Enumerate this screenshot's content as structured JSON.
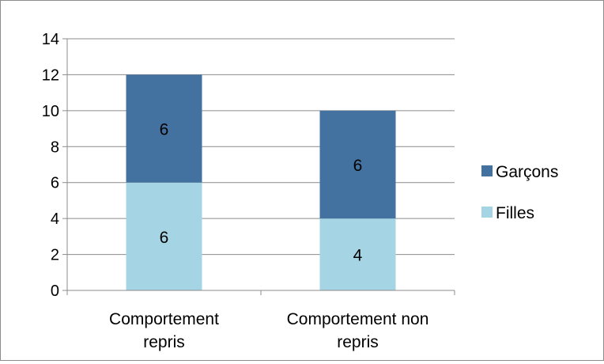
{
  "chart_data": {
    "type": "bar",
    "stacked": true,
    "title": "",
    "xlabel": "",
    "ylabel": "",
    "categories": [
      [
        "Comportement",
        "repris"
      ],
      [
        "Comportement non",
        "repris"
      ]
    ],
    "series": [
      {
        "name": "Filles",
        "values": [
          6,
          4
        ],
        "color": "#a5d5e4"
      },
      {
        "name": "Garçons",
        "values": [
          6,
          6
        ],
        "color": "#4472a0"
      }
    ],
    "data_labels": [
      [
        "6",
        "4"
      ],
      [
        "6",
        "6"
      ]
    ],
    "ylim": [
      0,
      14
    ],
    "yticks": [
      "0",
      "2",
      "4",
      "6",
      "8",
      "10",
      "12",
      "14"
    ],
    "grid": true,
    "legend_position": "right",
    "legend_order": [
      "Garçons",
      "Filles"
    ]
  }
}
